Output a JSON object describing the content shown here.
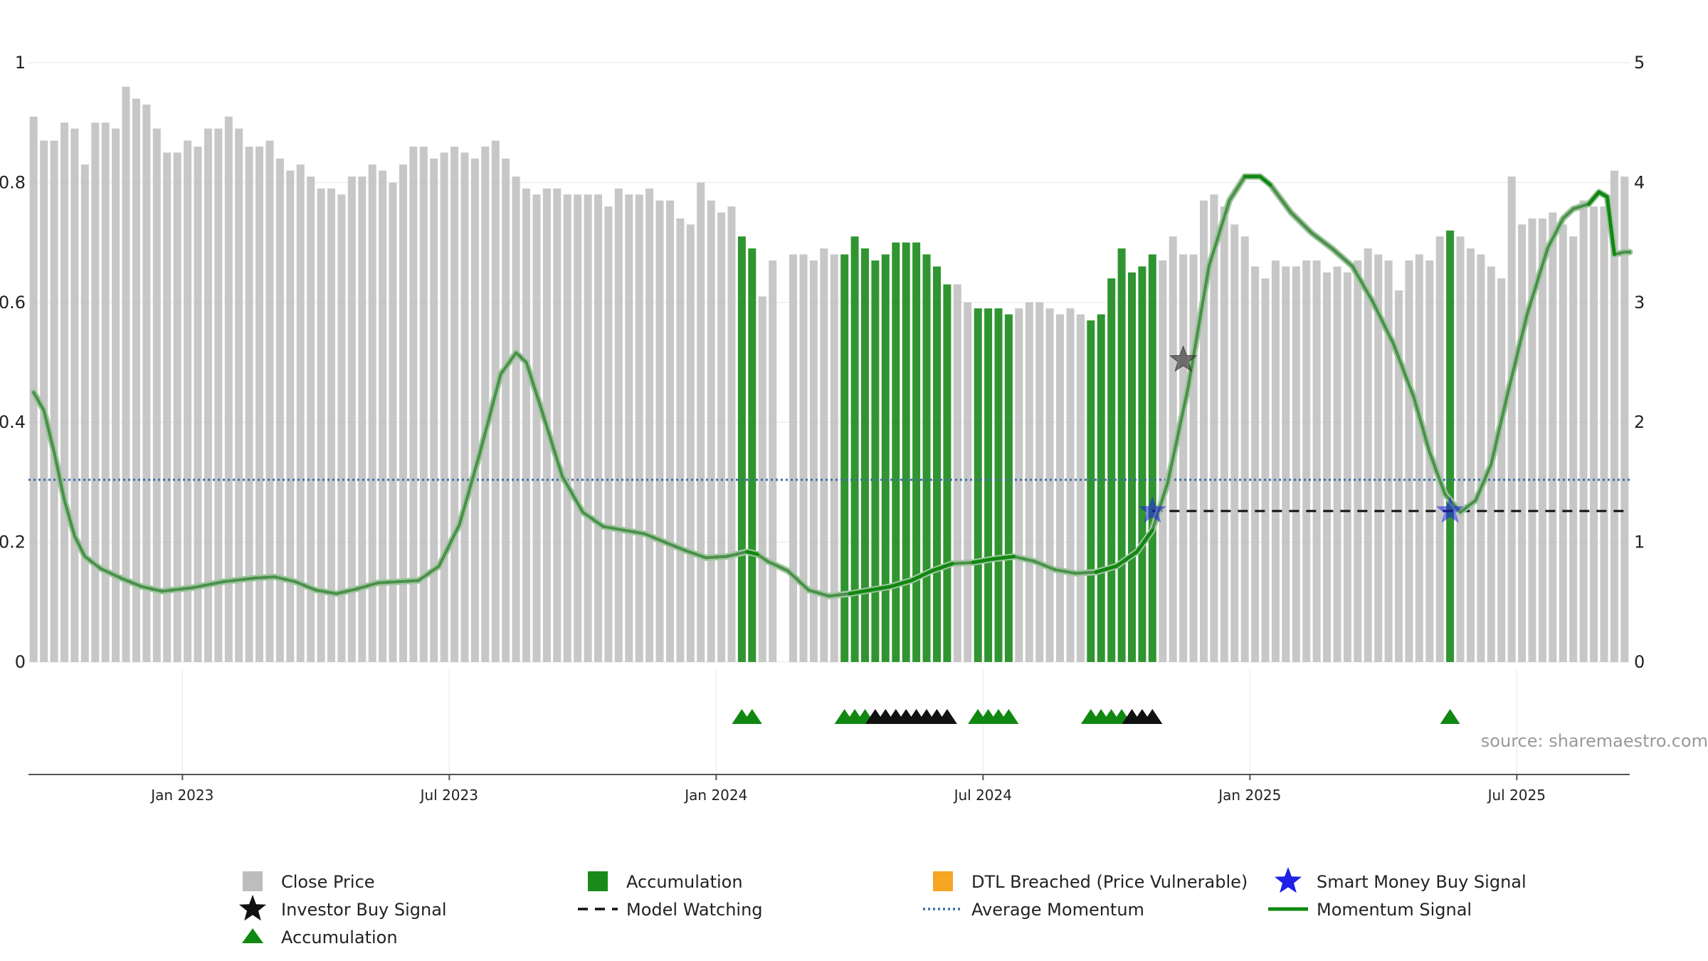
{
  "chart_data": {
    "type": "bar",
    "y_left_ticks": [
      "0",
      "0.2",
      "0.4",
      "0.6",
      "0.8",
      "1"
    ],
    "y_right_ticks": [
      "0",
      "1",
      "2",
      "3",
      "4",
      "5"
    ],
    "y_left_range": [
      0,
      1
    ],
    "y_right_range": [
      0,
      5
    ],
    "x_ticks": [
      {
        "label": "Jan 2023",
        "week": 15
      },
      {
        "label": "Jul 2023",
        "week": 41
      },
      {
        "label": "Jan 2024",
        "week": 67
      },
      {
        "label": "Jul 2024",
        "week": 93
      },
      {
        "label": "Jan 2025",
        "week": 119
      },
      {
        "label": "Jul 2025",
        "week": 145
      }
    ],
    "week_count": 156,
    "close_price": [
      0.91,
      0.87,
      0.87,
      0.9,
      0.89,
      0.83,
      0.9,
      0.9,
      0.89,
      0.96,
      0.94,
      0.93,
      0.89,
      0.85,
      0.85,
      0.87,
      0.86,
      0.89,
      0.89,
      0.91,
      0.89,
      0.86,
      0.86,
      0.87,
      0.84,
      0.82,
      0.83,
      0.81,
      0.79,
      0.79,
      0.78,
      0.81,
      0.81,
      0.83,
      0.82,
      0.8,
      0.83,
      0.86,
      0.86,
      0.84,
      0.85,
      0.86,
      0.85,
      0.84,
      0.86,
      0.87,
      0.84,
      0.81,
      0.79,
      0.78,
      0.79,
      0.79,
      0.78,
      0.78,
      0.78,
      0.78,
      0.76,
      0.79,
      0.78,
      0.78,
      0.79,
      0.77,
      0.77,
      0.74,
      0.73,
      0.8,
      0.77,
      0.75,
      0.76,
      0.71,
      0.69,
      0.61,
      0.67,
      0.0,
      0.68,
      0.68,
      0.67,
      0.69,
      0.68,
      0.68,
      0.71,
      0.69,
      0.67,
      0.68,
      0.7,
      0.7,
      0.7,
      0.68,
      0.66,
      0.63,
      0.63,
      0.6,
      0.59,
      0.59,
      0.59,
      0.58,
      0.59,
      0.6,
      0.6,
      0.59,
      0.58,
      0.59,
      0.58,
      0.57,
      0.58,
      0.64,
      0.69,
      0.65,
      0.66,
      0.68,
      0.67,
      0.71,
      0.68,
      0.68,
      0.77,
      0.78,
      0.76,
      0.73,
      0.71,
      0.66,
      0.64,
      0.67,
      0.66,
      0.66,
      0.67,
      0.67,
      0.65,
      0.66,
      0.65,
      0.67,
      0.69,
      0.68,
      0.67,
      0.62,
      0.67,
      0.68,
      0.67,
      0.71,
      0.72,
      0.71,
      0.69,
      0.68,
      0.66,
      0.64,
      0.81,
      0.73,
      0.74,
      0.74,
      0.75,
      0.73,
      0.71,
      0.77,
      0.76,
      0.76,
      0.82,
      0.81
    ],
    "accumulation_weeks": [
      69,
      70,
      79,
      80,
      81,
      82,
      83,
      84,
      85,
      86,
      87,
      88,
      89,
      92,
      93,
      94,
      95,
      103,
      104,
      105,
      106,
      107,
      108,
      109,
      138
    ],
    "accumulation_markers": [
      {
        "week": 69.5,
        "color": "green"
      },
      {
        "week": 70.5,
        "color": "green"
      },
      {
        "week": 79.5,
        "color": "green"
      },
      {
        "week": 80.5,
        "color": "green"
      },
      {
        "week": 81.5,
        "color": "green"
      },
      {
        "week": 82.5,
        "color": "black"
      },
      {
        "week": 83.5,
        "color": "black"
      },
      {
        "week": 84.5,
        "color": "black"
      },
      {
        "week": 85.5,
        "color": "black"
      },
      {
        "week": 86.5,
        "color": "black"
      },
      {
        "week": 87.5,
        "color": "black"
      },
      {
        "week": 88.5,
        "color": "black"
      },
      {
        "week": 89.5,
        "color": "black"
      },
      {
        "week": 92.5,
        "color": "green"
      },
      {
        "week": 93.5,
        "color": "green"
      },
      {
        "week": 94.5,
        "color": "green"
      },
      {
        "week": 95.5,
        "color": "green"
      },
      {
        "week": 103.5,
        "color": "green"
      },
      {
        "week": 104.5,
        "color": "green"
      },
      {
        "week": 105.5,
        "color": "green"
      },
      {
        "week": 106.5,
        "color": "green"
      },
      {
        "week": 107.5,
        "color": "black"
      },
      {
        "week": 108.5,
        "color": "black"
      },
      {
        "week": 109.5,
        "color": "black"
      },
      {
        "week": 138.5,
        "color": "green"
      }
    ],
    "momentum_signal": [
      [
        0.5,
        2.25
      ],
      [
        1.5,
        2.1
      ],
      [
        2.5,
        1.75
      ],
      [
        3.5,
        1.35
      ],
      [
        4.5,
        1.05
      ],
      [
        5.5,
        0.88
      ],
      [
        7,
        0.78
      ],
      [
        9,
        0.7
      ],
      [
        11,
        0.63
      ],
      [
        13,
        0.59
      ],
      [
        16,
        0.62
      ],
      [
        19,
        0.67
      ],
      [
        22,
        0.7
      ],
      [
        24,
        0.71
      ],
      [
        26,
        0.67
      ],
      [
        28,
        0.6
      ],
      [
        30,
        0.57
      ],
      [
        32,
        0.61
      ],
      [
        34,
        0.66
      ],
      [
        36,
        0.67
      ],
      [
        38,
        0.68
      ],
      [
        40,
        0.8
      ],
      [
        42,
        1.15
      ],
      [
        44,
        1.75
      ],
      [
        46,
        2.4
      ],
      [
        47.5,
        2.58
      ],
      [
        48.5,
        2.5
      ],
      [
        50,
        2.1
      ],
      [
        52,
        1.55
      ],
      [
        54,
        1.25
      ],
      [
        56,
        1.13
      ],
      [
        58,
        1.1
      ],
      [
        60,
        1.07
      ],
      [
        62,
        1.0
      ],
      [
        64,
        0.93
      ],
      [
        66,
        0.87
      ],
      [
        68,
        0.88
      ],
      [
        70,
        0.92
      ],
      [
        71,
        0.9
      ],
      [
        72,
        0.84
      ],
      [
        74,
        0.76
      ],
      [
        76,
        0.6
      ],
      [
        78,
        0.55
      ],
      [
        80,
        0.57
      ],
      [
        82,
        0.6
      ],
      [
        84,
        0.63
      ],
      [
        86,
        0.68
      ],
      [
        88,
        0.76
      ],
      [
        90,
        0.82
      ],
      [
        92,
        0.83
      ],
      [
        94,
        0.86
      ],
      [
        96,
        0.88
      ],
      [
        98,
        0.84
      ],
      [
        100,
        0.77
      ],
      [
        102,
        0.74
      ],
      [
        104,
        0.75
      ],
      [
        106,
        0.8
      ],
      [
        108,
        0.92
      ],
      [
        109.5,
        1.1
      ],
      [
        111,
        1.5
      ],
      [
        113,
        2.3
      ],
      [
        115,
        3.3
      ],
      [
        117,
        3.85
      ],
      [
        118.5,
        4.05
      ],
      [
        120,
        4.05
      ],
      [
        121,
        3.98
      ],
      [
        123,
        3.75
      ],
      [
        125,
        3.58
      ],
      [
        127,
        3.45
      ],
      [
        129,
        3.3
      ],
      [
        131,
        3.0
      ],
      [
        133,
        2.65
      ],
      [
        135,
        2.2
      ],
      [
        136.5,
        1.75
      ],
      [
        138,
        1.4
      ],
      [
        139.5,
        1.25
      ],
      [
        141,
        1.35
      ],
      [
        142.5,
        1.65
      ],
      [
        144,
        2.2
      ],
      [
        146,
        2.9
      ],
      [
        148,
        3.45
      ],
      [
        149.5,
        3.7
      ],
      [
        150.5,
        3.78
      ],
      [
        152,
        3.82
      ],
      [
        153,
        3.92
      ],
      [
        153.8,
        3.88
      ],
      [
        154.5,
        3.4
      ],
      [
        155.5,
        3.42
      ],
      [
        156,
        3.42
      ]
    ],
    "momentum_highlight_ranges": [
      [
        69,
        71
      ],
      [
        79,
        90
      ],
      [
        92,
        96
      ],
      [
        103,
        110
      ],
      [
        118,
        122
      ],
      [
        138,
        139
      ],
      [
        152,
        154.5
      ]
    ],
    "average_momentum": 1.52,
    "model_watching": {
      "level": 1.26,
      "from_week": 109.5,
      "to_week": 156
    },
    "smart_money_buy_signals": [
      {
        "week": 109.5,
        "value": 1.26
      },
      {
        "week": 138.5,
        "value": 1.26
      }
    ],
    "investor_buy_signals": [
      {
        "week": 112.5,
        "value": 2.52
      }
    ],
    "colors": {
      "close_price": "#bdbdbd",
      "accumulation": "#1a8a1a",
      "dtl": "#f5a623",
      "smart_money": "#1f1fe6",
      "investor": "#111111",
      "momentum": "#118811",
      "average_momentum": "#3b6fa8"
    },
    "legend": [
      {
        "label": "Close Price",
        "symbol": "square",
        "color": "#bdbdbd"
      },
      {
        "label": "Accumulation",
        "symbol": "square",
        "color": "#1a8a1a"
      },
      {
        "label": "DTL Breached (Price Vulnerable)",
        "symbol": "square",
        "color": "#f5a623"
      },
      {
        "label": "Smart Money Buy Signal",
        "symbol": "star",
        "color": "#1f1fe6"
      },
      {
        "label": "Investor Buy Signal",
        "symbol": "star",
        "color": "#111111"
      },
      {
        "label": "Model Watching",
        "symbol": "dash",
        "color": "#111111"
      },
      {
        "label": "Average Momentum",
        "symbol": "dot",
        "color": "#3b6fa8"
      },
      {
        "label": "Momentum Signal",
        "symbol": "line",
        "color": "#118811"
      },
      {
        "label": "Accumulation",
        "symbol": "triangle",
        "color": "#118811"
      }
    ],
    "source_note": "source: sharemaestro.com"
  }
}
